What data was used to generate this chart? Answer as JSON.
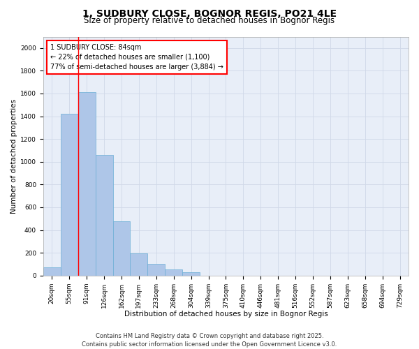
{
  "title_line1": "1, SUDBURY CLOSE, BOGNOR REGIS, PO21 4LE",
  "title_line2": "Size of property relative to detached houses in Bognor Regis",
  "xlabel": "Distribution of detached houses by size in Bognor Regis",
  "ylabel": "Number of detached properties",
  "categories": [
    "20sqm",
    "55sqm",
    "91sqm",
    "126sqm",
    "162sqm",
    "197sqm",
    "233sqm",
    "268sqm",
    "304sqm",
    "339sqm",
    "375sqm",
    "410sqm",
    "446sqm",
    "481sqm",
    "516sqm",
    "552sqm",
    "587sqm",
    "623sqm",
    "658sqm",
    "694sqm",
    "729sqm"
  ],
  "values": [
    70,
    1420,
    1610,
    1060,
    475,
    195,
    105,
    55,
    28,
    0,
    0,
    0,
    0,
    0,
    0,
    0,
    0,
    0,
    0,
    0,
    0
  ],
  "bar_color": "#aec6e8",
  "bar_edge_color": "#6baed6",
  "vline_color": "red",
  "annotation_text": "1 SUDBURY CLOSE: 84sqm\n← 22% of detached houses are smaller (1,100)\n77% of semi-detached houses are larger (3,884) →",
  "annotation_box_edgecolor": "red",
  "annotation_text_color": "black",
  "ylim": [
    0,
    2100
  ],
  "yticks": [
    0,
    200,
    400,
    600,
    800,
    1000,
    1200,
    1400,
    1600,
    1800,
    2000
  ],
  "grid_color": "#d0d8e8",
  "bg_color": "#e8eef8",
  "footer_line1": "Contains HM Land Registry data © Crown copyright and database right 2025.",
  "footer_line2": "Contains public sector information licensed under the Open Government Licence v3.0.",
  "title1_fontsize": 10,
  "title2_fontsize": 8.5,
  "axis_label_fontsize": 7.5,
  "tick_fontsize": 6.5,
  "annotation_fontsize": 7,
  "footer_fontsize": 6
}
